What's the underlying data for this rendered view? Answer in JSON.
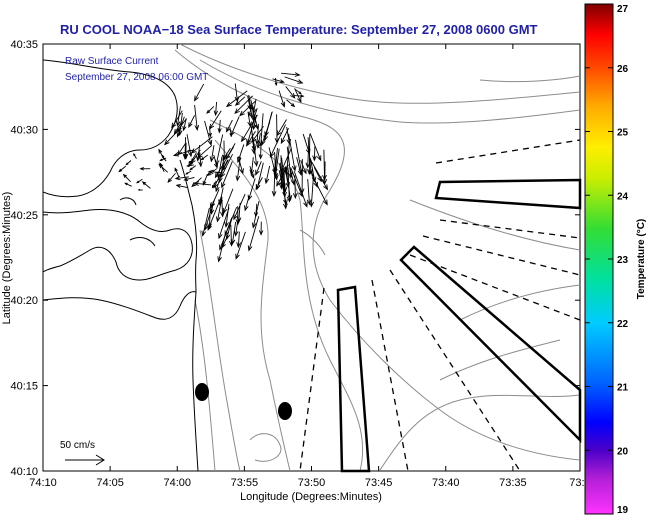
{
  "title": "RU COOL  NOAA−18  Sea Surface Temperature:  September 27, 2008 0600 GMT",
  "annotation": {
    "line1": "Raw Surface Current",
    "line2": "September 27, 2008 06:00 GMT",
    "color": "#1f1fa8"
  },
  "scale_arrow": {
    "label": "50 cm/s"
  },
  "axes": {
    "xlabel": "Longitude (Degrees:Minutes)",
    "ylabel": "Latitude (Degrees:Minutes)",
    "x_ticks": [
      "74:10",
      "74:05",
      "74:00",
      "73:55",
      "73:50",
      "73:45",
      "73:40",
      "73:35",
      "73:3"
    ],
    "y_ticks": [
      "40:35",
      "40:30",
      "40:25",
      "40:20",
      "40:15",
      "40:10"
    ]
  },
  "colorbar": {
    "label": "Temperature (°C)",
    "ticks": [
      "27",
      "26",
      "25",
      "24",
      "23",
      "22",
      "21",
      "20",
      "19"
    ],
    "range": [
      19,
      27
    ]
  },
  "colors": {
    "axis": "#000000",
    "land": "#000000",
    "isobath": "#8c8c8c",
    "title": "#1f1fa8"
  }
}
